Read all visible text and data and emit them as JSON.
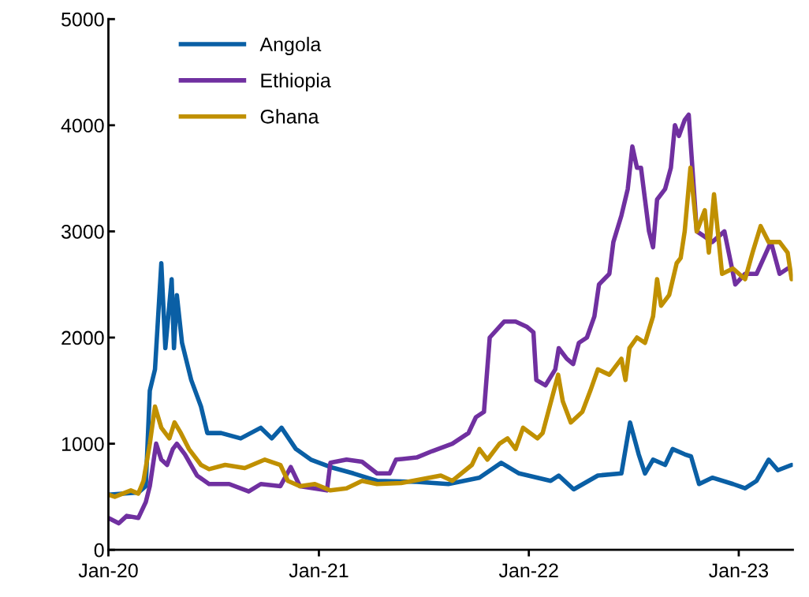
{
  "chart_data": {
    "type": "line",
    "ylim": [
      0,
      5000
    ],
    "yticks": [
      0,
      1000,
      2000,
      3000,
      4000,
      5000
    ],
    "xlim": [
      "2020-01-01",
      "2023-04-05"
    ],
    "xticks": [
      {
        "value": "2020-01-01",
        "label": "Jan-20"
      },
      {
        "value": "2021-01-01",
        "label": "Jan-21"
      },
      {
        "value": "2022-01-01",
        "label": "Jan-22"
      },
      {
        "value": "2023-01-01",
        "label": "Jan-23"
      }
    ],
    "grid": false,
    "legend": "top left",
    "line_style": "solid",
    "marker": "none",
    "series": [
      {
        "name": "Angola",
        "color": "#0a5fa5",
        "x": [
          "2020-01-01",
          "2020-02-22",
          "2020-03-06",
          "2020-03-13",
          "2020-03-22",
          "2020-04-02",
          "2020-04-09",
          "2020-04-20",
          "2020-04-24",
          "2020-04-29",
          "2020-05-08",
          "2020-05-24",
          "2020-06-10",
          "2020-06-21",
          "2020-07-15",
          "2020-08-18",
          "2020-09-22",
          "2020-10-11",
          "2020-10-28",
          "2020-11-22",
          "2020-12-18",
          "2021-01-21",
          "2021-03-02",
          "2021-04-12",
          "2021-06-20",
          "2021-08-14",
          "2021-10-07",
          "2021-11-14",
          "2021-12-15",
          "2022-02-08",
          "2022-02-22",
          "2022-03-20",
          "2022-05-01",
          "2022-06-11",
          "2022-06-26",
          "2022-07-11",
          "2022-07-22",
          "2022-08-05",
          "2022-08-26",
          "2022-09-08",
          "2022-09-29",
          "2022-10-10",
          "2022-10-24",
          "2022-11-16",
          "2022-12-22",
          "2023-01-12",
          "2023-02-01",
          "2023-02-22",
          "2023-03-10",
          "2023-04-03"
        ],
        "values": [
          520,
          540,
          600,
          1500,
          1700,
          2700,
          1900,
          2550,
          1900,
          2400,
          1950,
          1600,
          1350,
          1100,
          1100,
          1050,
          1150,
          1050,
          1150,
          950,
          850,
          780,
          720,
          650,
          640,
          620,
          680,
          820,
          720,
          650,
          700,
          570,
          700,
          720,
          1200,
          900,
          720,
          850,
          800,
          950,
          900,
          880,
          620,
          680,
          620,
          580,
          650,
          850,
          750,
          800
        ]
      },
      {
        "name": "Ethiopia",
        "color": "#7030a0",
        "x": [
          "2020-01-01",
          "2020-01-19",
          "2020-02-02",
          "2020-02-22",
          "2020-03-06",
          "2020-03-13",
          "2020-03-24",
          "2020-04-02",
          "2020-04-12",
          "2020-04-22",
          "2020-04-29",
          "2020-05-13",
          "2020-06-03",
          "2020-06-24",
          "2020-07-29",
          "2020-09-01",
          "2020-09-22",
          "2020-10-26",
          "2020-11-13",
          "2020-11-29",
          "2021-01-15",
          "2021-01-21",
          "2021-02-18",
          "2021-03-17",
          "2021-04-12",
          "2021-05-04",
          "2021-05-15",
          "2021-06-20",
          "2021-07-17",
          "2021-08-21",
          "2021-09-18",
          "2021-10-01",
          "2021-10-15",
          "2021-10-25",
          "2021-11-19",
          "2021-12-09",
          "2021-12-29",
          "2022-01-09",
          "2022-01-14",
          "2022-01-30",
          "2022-02-16",
          "2022-02-22",
          "2022-03-08",
          "2022-03-19",
          "2022-03-29",
          "2022-04-12",
          "2022-04-25",
          "2022-05-03",
          "2022-05-21",
          "2022-05-28",
          "2022-06-11",
          "2022-06-22",
          "2022-06-30",
          "2022-07-08",
          "2022-07-15",
          "2022-07-22",
          "2022-07-29",
          "2022-08-05",
          "2022-08-12",
          "2022-08-26",
          "2022-09-05",
          "2022-09-12",
          "2022-09-19",
          "2022-09-29",
          "2022-10-06",
          "2022-10-20",
          "2022-11-03",
          "2022-11-16",
          "2022-12-07",
          "2022-12-26",
          "2023-01-12",
          "2023-02-01",
          "2023-02-26",
          "2023-03-13",
          "2023-03-27"
        ],
        "values": [
          300,
          250,
          320,
          300,
          450,
          600,
          1000,
          850,
          800,
          950,
          1000,
          900,
          700,
          620,
          620,
          550,
          620,
          600,
          780,
          600,
          560,
          820,
          850,
          830,
          720,
          720,
          850,
          870,
          930,
          1000,
          1100,
          1250,
          1300,
          2000,
          2150,
          2150,
          2100,
          2050,
          1600,
          1550,
          1700,
          1900,
          1800,
          1750,
          1950,
          2000,
          2200,
          2500,
          2600,
          2900,
          3150,
          3400,
          3800,
          3600,
          3600,
          3300,
          3000,
          2850,
          3300,
          3400,
          3600,
          4000,
          3900,
          4050,
          4100,
          3000,
          2950,
          2900,
          3000,
          2500,
          2600,
          2600,
          2900,
          2600,
          2650
        ]
      },
      {
        "name": "Ghana",
        "color": "#c09000",
        "x": [
          "2020-01-01",
          "2020-01-12",
          "2020-02-09",
          "2020-02-22",
          "2020-03-02",
          "2020-03-13",
          "2020-03-22",
          "2020-04-02",
          "2020-04-16",
          "2020-04-25",
          "2020-05-06",
          "2020-05-20",
          "2020-06-10",
          "2020-06-24",
          "2020-07-22",
          "2020-08-25",
          "2020-09-29",
          "2020-10-26",
          "2020-11-08",
          "2020-11-29",
          "2020-12-25",
          "2021-01-21",
          "2021-02-18",
          "2021-03-17",
          "2021-04-12",
          "2021-05-24",
          "2021-07-03",
          "2021-08-01",
          "2021-08-21",
          "2021-09-24",
          "2021-10-07",
          "2021-10-21",
          "2021-11-11",
          "2021-11-25",
          "2021-12-09",
          "2021-12-22",
          "2022-01-16",
          "2022-01-25",
          "2022-02-21",
          "2022-03-01",
          "2022-03-15",
          "2022-04-04",
          "2022-04-18",
          "2022-05-01",
          "2022-05-21",
          "2022-06-11",
          "2022-06-18",
          "2022-06-25",
          "2022-07-08",
          "2022-07-22",
          "2022-08-05",
          "2022-08-12",
          "2022-08-19",
          "2022-09-02",
          "2022-09-15",
          "2022-09-22",
          "2022-09-29",
          "2022-10-09",
          "2022-10-20",
          "2022-11-03",
          "2022-11-10",
          "2022-11-19",
          "2022-12-03",
          "2022-12-22",
          "2023-01-12",
          "2023-01-25",
          "2023-02-08",
          "2023-02-22",
          "2023-03-13",
          "2023-03-27",
          "2023-04-03"
        ],
        "values": [
          520,
          500,
          560,
          530,
          650,
          1000,
          1350,
          1150,
          1050,
          1200,
          1100,
          950,
          800,
          760,
          800,
          770,
          850,
          800,
          650,
          600,
          620,
          560,
          580,
          650,
          620,
          630,
          670,
          700,
          650,
          800,
          950,
          850,
          1000,
          1050,
          950,
          1150,
          1050,
          1100,
          1650,
          1400,
          1200,
          1300,
          1500,
          1700,
          1650,
          1800,
          1600,
          1900,
          2000,
          1950,
          2200,
          2550,
          2300,
          2400,
          2700,
          2750,
          3000,
          3600,
          3000,
          3200,
          2800,
          3350,
          2600,
          2650,
          2550,
          2800,
          3050,
          2900,
          2900,
          2800,
          2550
        ]
      }
    ]
  }
}
